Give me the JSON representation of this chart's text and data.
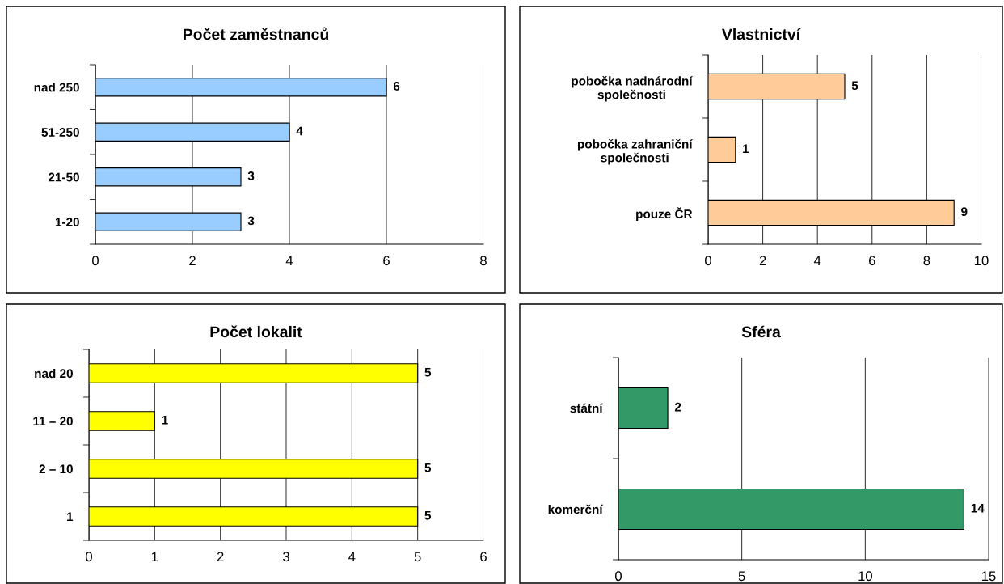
{
  "chart_data": [
    {
      "type": "bar",
      "orientation": "horizontal",
      "title": "Počet zaměstnanců",
      "categories": [
        "nad 250",
        "51-250",
        "21-50",
        "1-20"
      ],
      "values": [
        6,
        4,
        3,
        3
      ],
      "color": "#99ccff",
      "xlim": [
        0,
        8
      ],
      "xticks": [
        0,
        2,
        4,
        6,
        8
      ],
      "grid": "x",
      "data_labels": true,
      "legend": false
    },
    {
      "type": "bar",
      "orientation": "horizontal",
      "title": "Vlastnictví",
      "categories": [
        "pobočka nadnárodní\nspolečnosti",
        "pobočka zahraniční\nspolečnosti",
        "pouze ČR"
      ],
      "values": [
        5,
        1,
        9
      ],
      "color": "#ffcc99",
      "xlim": [
        0,
        10
      ],
      "xticks": [
        0,
        2,
        4,
        6,
        8,
        10
      ],
      "grid": "x",
      "data_labels": true,
      "legend": false
    },
    {
      "type": "bar",
      "orientation": "horizontal",
      "title": "Počet lokalit",
      "categories": [
        "nad 20",
        "11 – 20",
        "2 – 10",
        "1"
      ],
      "values": [
        5,
        1,
        5,
        5
      ],
      "color": "#ffff00",
      "xlim": [
        0,
        6
      ],
      "xticks": [
        0,
        1,
        2,
        3,
        4,
        5,
        6
      ],
      "grid": "x",
      "data_labels": true,
      "legend": false
    },
    {
      "type": "bar",
      "orientation": "horizontal",
      "title": "Sféra",
      "categories": [
        "státní",
        "komerční"
      ],
      "values": [
        2,
        14
      ],
      "color": "#339966",
      "xlim": [
        0,
        15
      ],
      "xticks": [
        0,
        5,
        10,
        15
      ],
      "grid": "x",
      "data_labels": true,
      "legend": false
    }
  ]
}
